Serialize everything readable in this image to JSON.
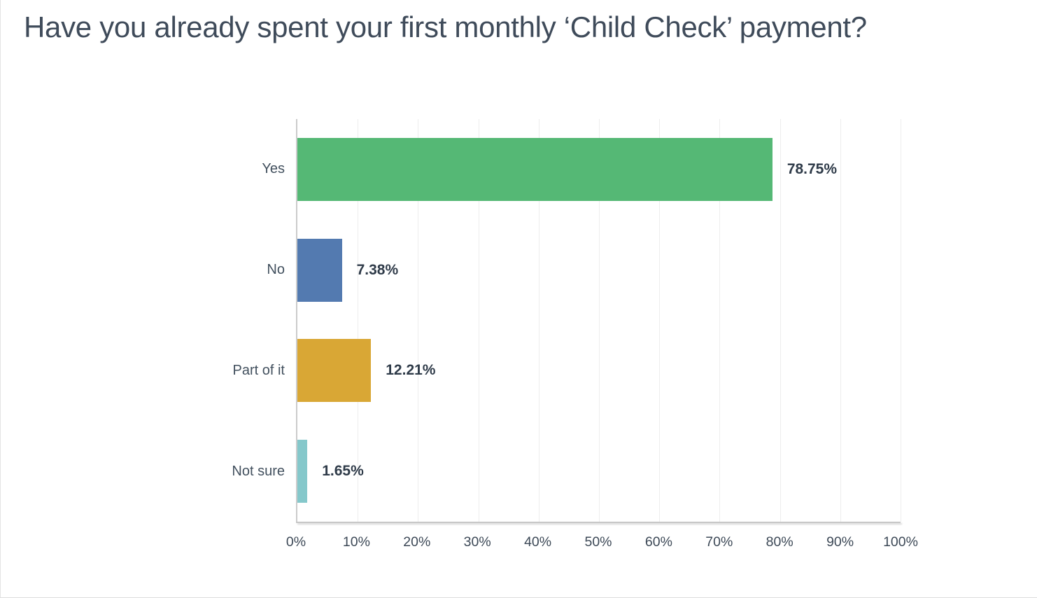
{
  "page": {
    "title": "Have you already spent your first monthly ‘Child Check’ payment?"
  },
  "chart_data": {
    "type": "bar",
    "orientation": "horizontal",
    "title": "Have you already spent your first monthly ‘Child Check’ payment?",
    "categories": [
      "Yes",
      "No",
      "Part of it",
      "Not sure"
    ],
    "values": [
      78.75,
      7.38,
      12.21,
      1.65
    ],
    "value_labels": [
      "78.75%",
      "7.38%",
      "12.21%",
      "1.65%"
    ],
    "bar_colors": [
      "#55b875",
      "#537ab0",
      "#d9a735",
      "#85c8cb"
    ],
    "x_ticks": [
      "0%",
      "10%",
      "20%",
      "30%",
      "40%",
      "50%",
      "60%",
      "70%",
      "80%",
      "90%",
      "100%"
    ],
    "xlim": [
      0,
      100
    ],
    "xlabel": "",
    "ylabel": "",
    "grid": "vertical",
    "legend": "none"
  },
  "colors": {
    "bar_green": "#55b875",
    "bar_blue": "#537ab0",
    "bar_amber": "#d9a735",
    "bar_teal": "#85c8cb",
    "title_text": "#3f4b5a",
    "category_text": "#42505e",
    "value_text": "#2f3b49",
    "tick_text": "#3d4957",
    "gridline": "#ededed",
    "axis_line": "#c9c9c9"
  }
}
